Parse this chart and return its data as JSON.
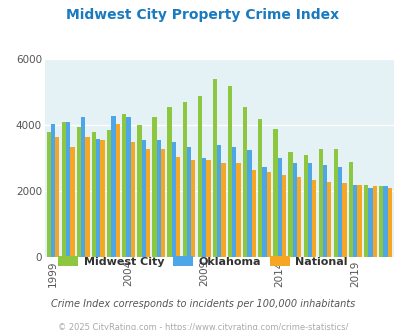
{
  "title": "Midwest City Property Crime Index",
  "subtitle": "Crime Index corresponds to incidents per 100,000 inhabitants",
  "footer": "© 2025 CityRating.com - https://www.cityrating.com/crime-statistics/",
  "years": [
    1999,
    2000,
    2001,
    2002,
    2003,
    2004,
    2005,
    2006,
    2007,
    2008,
    2009,
    2010,
    2011,
    2012,
    2013,
    2014,
    2015,
    2016,
    2017,
    2018,
    2019,
    2020,
    2021
  ],
  "midwest_city": [
    3800,
    4100,
    3950,
    3800,
    3850,
    4350,
    4000,
    4250,
    4550,
    4700,
    4900,
    5400,
    5200,
    4550,
    4200,
    3900,
    3200,
    3100,
    3300,
    3300,
    2900,
    2200,
    2150
  ],
  "oklahoma": [
    4050,
    4100,
    4250,
    3600,
    4300,
    4250,
    3550,
    3550,
    3500,
    3350,
    3000,
    3400,
    3350,
    3250,
    2750,
    3000,
    2850,
    2850,
    2800,
    2750,
    2200,
    2100,
    2150
  ],
  "national": [
    3650,
    3350,
    3650,
    3550,
    4050,
    3500,
    3300,
    3300,
    3050,
    2950,
    2950,
    2850,
    2850,
    2650,
    2600,
    2500,
    2450,
    2350,
    2300,
    2250,
    2200,
    2150,
    2100
  ],
  "bar_colors": {
    "midwest_city": "#8dc63f",
    "oklahoma": "#4da6e8",
    "national": "#f5a623"
  },
  "bg_color": "#e4f1f5",
  "ylim": [
    0,
    6000
  ],
  "yticks": [
    0,
    2000,
    4000,
    6000
  ],
  "xlabel_ticks": [
    1999,
    2004,
    2009,
    2014,
    2019
  ],
  "title_color": "#1a7abf",
  "subtitle_color": "#555555",
  "footer_color": "#aaaaaa",
  "legend_labels": [
    "Midwest City",
    "Oklahoma",
    "National"
  ]
}
